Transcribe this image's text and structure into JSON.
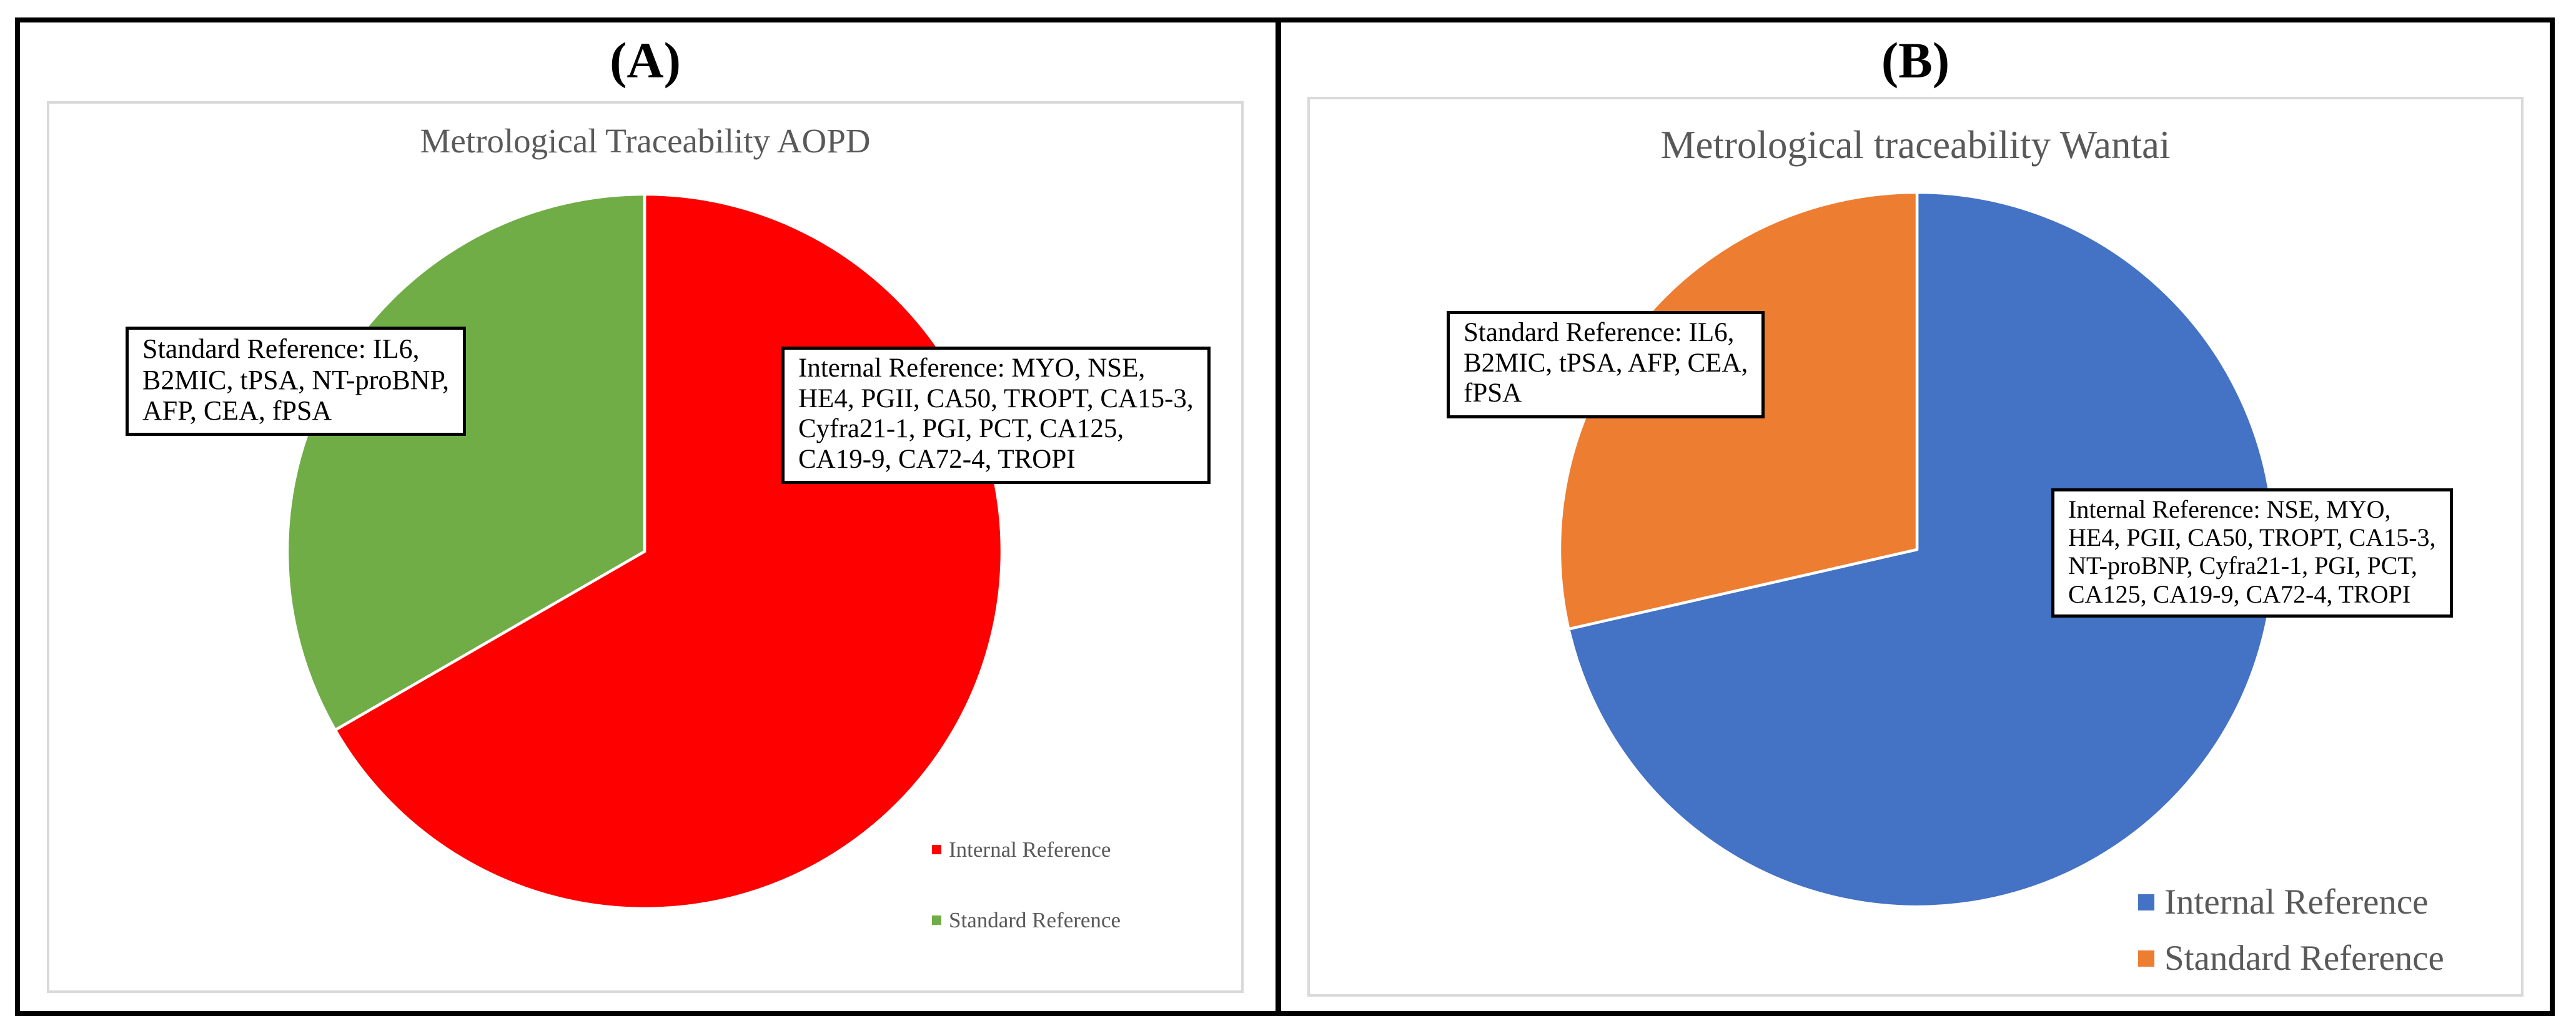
{
  "styles": {
    "frame_color": "#000000",
    "chart_border_color": "#D9D9D9",
    "title_color": "#595959",
    "legend_text_color": "#595959",
    "callout_border_color": "#000000",
    "slice_separator_color": "#FFFFFF"
  },
  "panels": [
    {
      "label": "(A)",
      "callout_standard": "Standard Reference: IL6,\nB2MIC, tPSA, NT-proBNP,\nAFP, CEA, fPSA",
      "callout_internal": "Internal Reference: MYO, NSE,\nHE4, PGII, CA50, TROPT, CA15-3,\nCyfra21-1, PGI, PCT, CA125,\nCA19-9, CA72-4, TROPI"
    },
    {
      "label": "(B)",
      "callout_standard": "Standard Reference: IL6,\nB2MIC, tPSA, AFP, CEA,\nfPSA",
      "callout_internal": "Internal Reference: NSE, MYO,\nHE4, PGII, CA50, TROPT, CA15-3,\nNT-proBNP, Cyfra21-1, PGI, PCT,\nCA125, CA19-9, CA72-4, TROPI"
    }
  ],
  "chart_data": [
    {
      "type": "pie",
      "title": "Metrological Traceability AOPD",
      "labels": [
        "Internal Reference",
        "Standard Reference"
      ],
      "values": [
        14,
        7
      ],
      "percentages": [
        66.7,
        33.3
      ],
      "colors": [
        "#FF0000",
        "#70AD47"
      ],
      "start_angle_deg": 0,
      "direction": "clockwise",
      "legend_position": "bottom-right",
      "slice_items": [
        [
          "MYO",
          "NSE",
          "HE4",
          "PGII",
          "CA50",
          "TROPT",
          "CA15-3",
          "Cyfra21-1",
          "PGI",
          "PCT",
          "CA125",
          "CA19-9",
          "CA72-4",
          "TROPI"
        ],
        [
          "IL6",
          "B2MIC",
          "tPSA",
          "NT-proBNP",
          "AFP",
          "CEA",
          "fPSA"
        ]
      ]
    },
    {
      "type": "pie",
      "title": "Metrological traceability Wantai",
      "labels": [
        "Internal Reference",
        "Standard Reference"
      ],
      "values": [
        15,
        6
      ],
      "percentages": [
        71.4,
        28.6
      ],
      "colors": [
        "#4472C4",
        "#ED7D31"
      ],
      "start_angle_deg": 0,
      "direction": "clockwise",
      "legend_position": "bottom-right",
      "slice_items": [
        [
          "NSE",
          "MYO",
          "HE4",
          "PGII",
          "CA50",
          "TROPT",
          "CA15-3",
          "NT-proBNP",
          "Cyfra21-1",
          "PGI",
          "PCT",
          "CA125",
          "CA19-9",
          "CA72-4",
          "TROPI"
        ],
        [
          "IL6",
          "B2MIC",
          "tPSA",
          "AFP",
          "CEA",
          "fPSA"
        ]
      ]
    }
  ]
}
